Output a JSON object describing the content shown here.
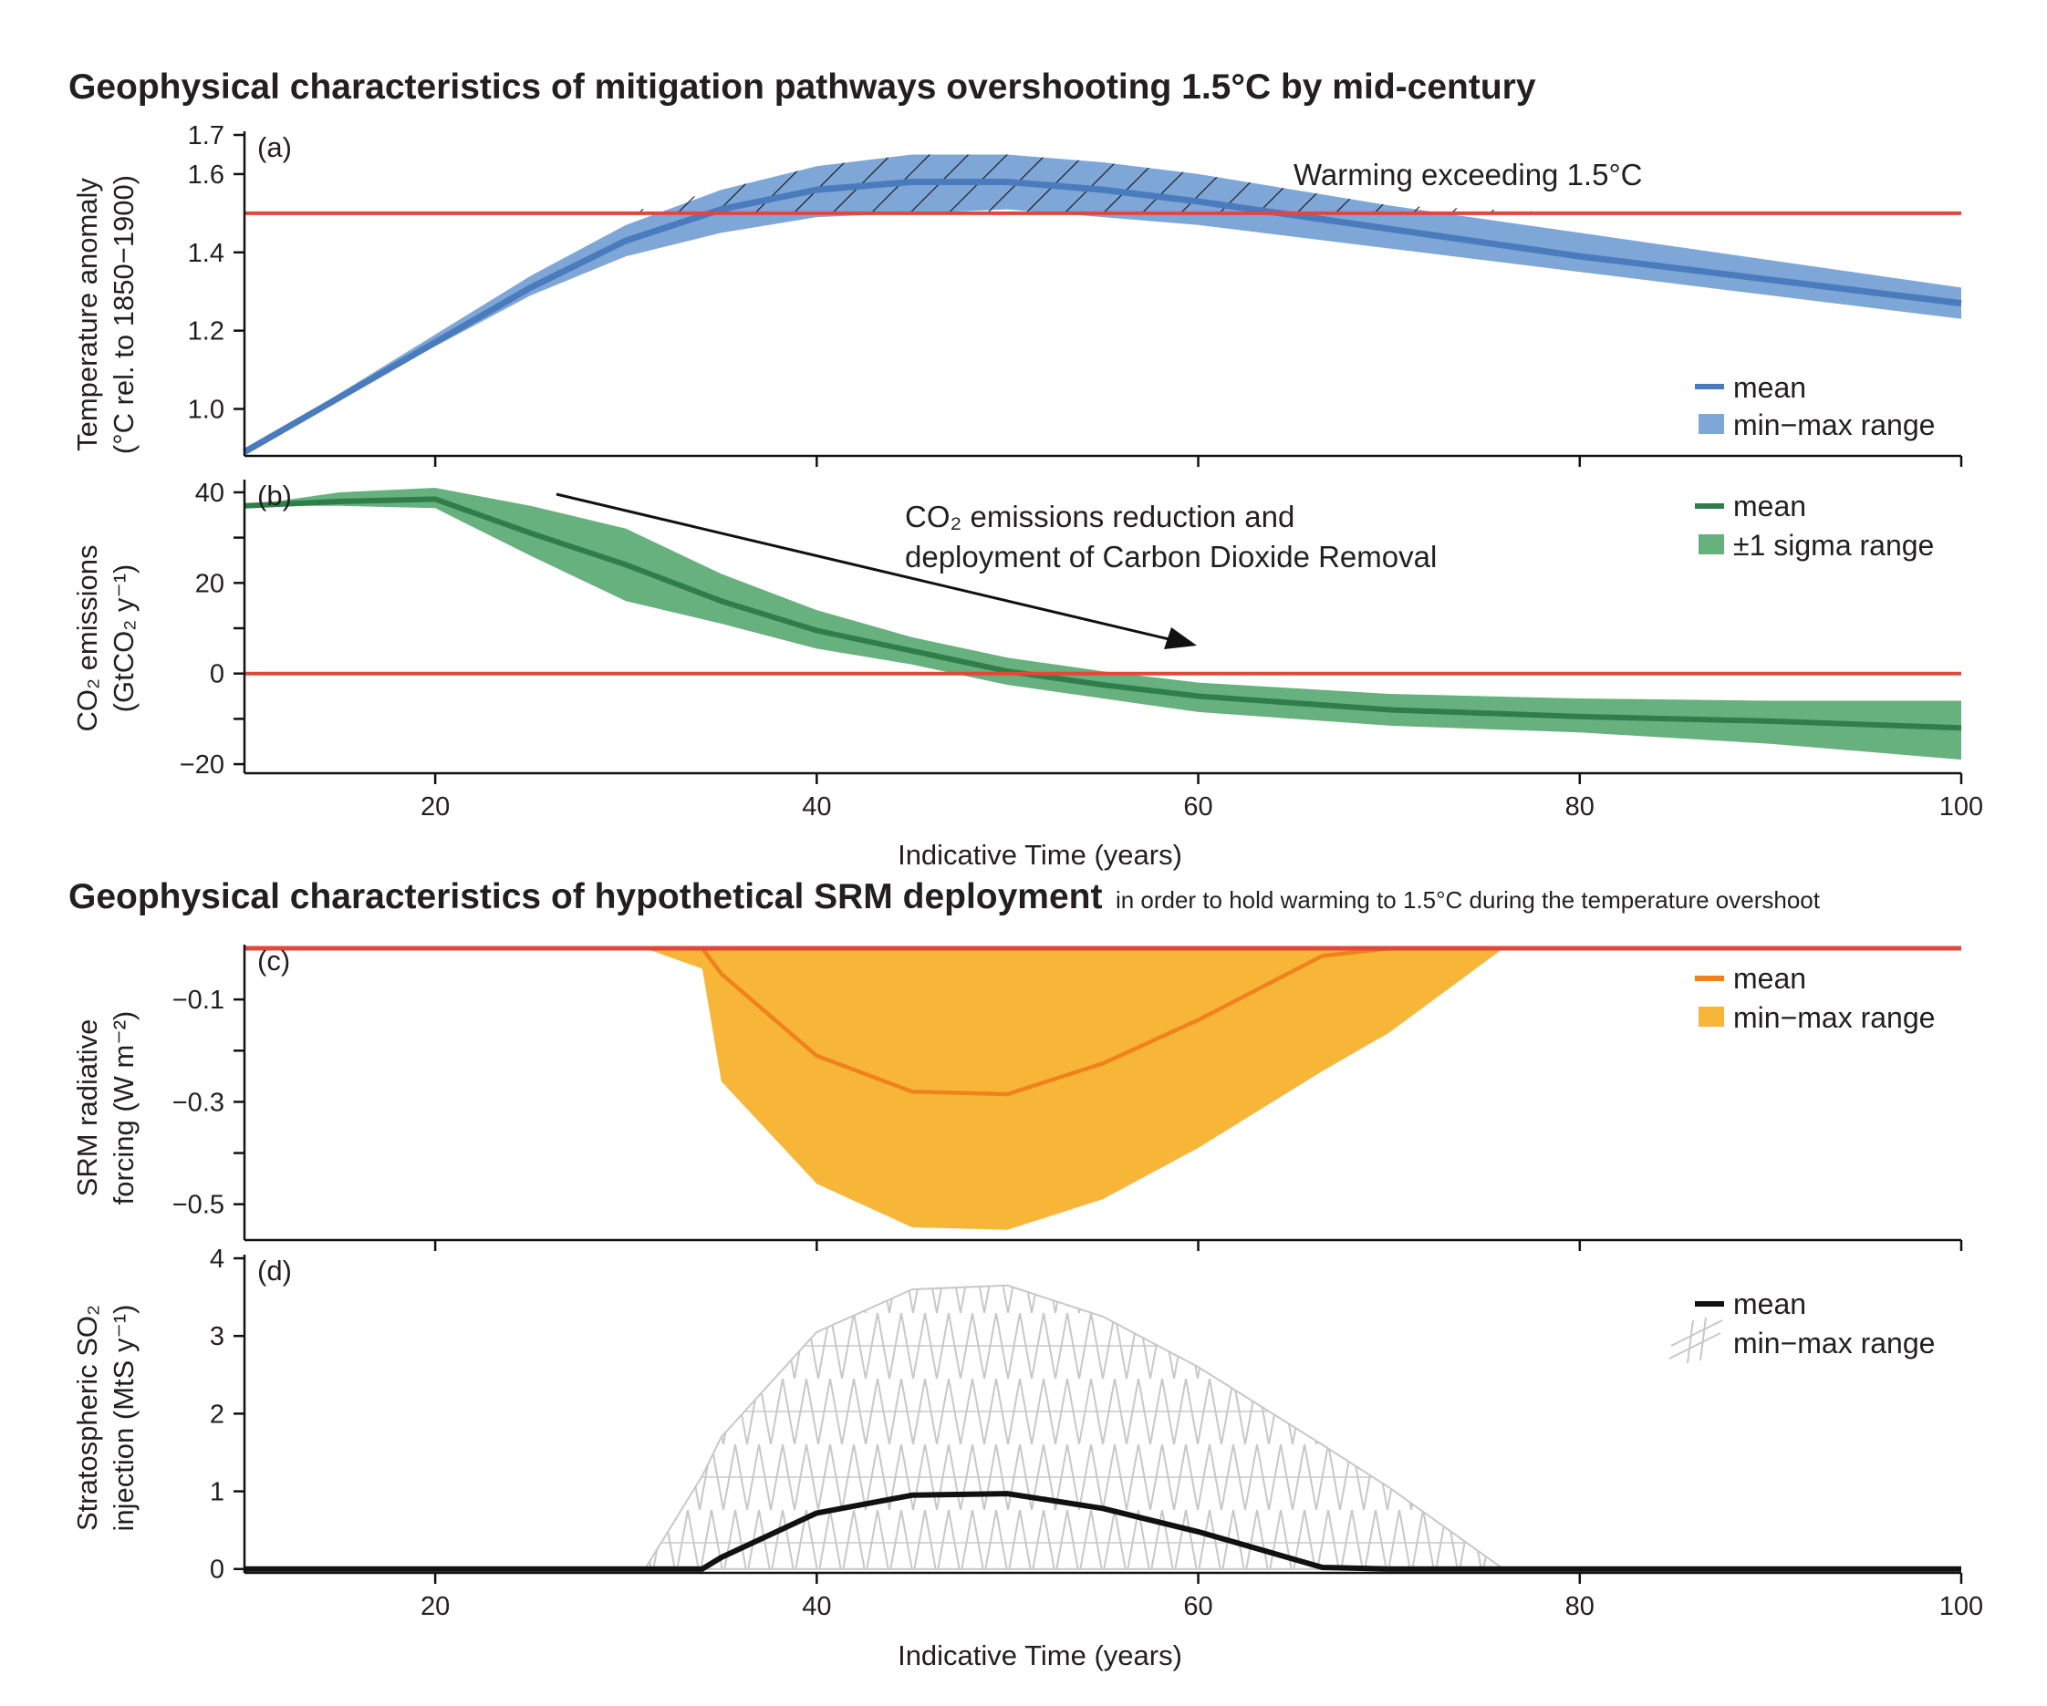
{
  "titles": {
    "top": "Geophysical characteristics of mitigation pathways overshooting 1.5°C by mid-century",
    "bottom_bold": "Geophysical characteristics of hypothetical SRM deployment",
    "bottom_normal": "in order to hold warming to 1.5°C during the temperature overshoot"
  },
  "x_axis": {
    "label": "Indicative Time (years)",
    "range": [
      10,
      100
    ],
    "ticks": [
      20,
      40,
      60,
      80,
      100
    ]
  },
  "colors": {
    "temp_mean": "#4a7bbd",
    "temp_band": "#7ea7d8",
    "co2_mean": "#2e7d4a",
    "co2_band": "#66b17d",
    "srm_mean": "#f0821e",
    "srm_band": "#f8b638",
    "so2_mean": "#111111",
    "so2_hatch": "#c8c8c8",
    "threshold": "#e2473a"
  },
  "chart_data": [
    {
      "id": "a",
      "panel_label": "(a)",
      "type": "area",
      "ylabel_line1": "Temperature anomaly",
      "ylabel_line2": "(°C rel. to 1850−1900)",
      "ylim": [
        0.88,
        1.7
      ],
      "yticks": [
        1.0,
        1.2,
        1.4,
        1.6,
        1.7
      ],
      "ytick_labels": [
        "1.0",
        "1.2",
        "1.4",
        "1.6",
        "1.7"
      ],
      "threshold": 1.5,
      "annotation": "Warming exceeding 1.5°C",
      "legend": {
        "mean": "mean",
        "band": "min−max range"
      },
      "x": [
        10,
        15,
        20,
        25,
        30,
        35,
        40,
        45,
        50,
        55,
        60,
        70,
        80,
        90,
        100
      ],
      "mean": [
        0.89,
        1.03,
        1.17,
        1.31,
        1.43,
        1.51,
        1.56,
        1.58,
        1.58,
        1.56,
        1.53,
        1.46,
        1.39,
        1.33,
        1.27
      ],
      "max": [
        0.89,
        1.04,
        1.19,
        1.34,
        1.47,
        1.56,
        1.62,
        1.65,
        1.65,
        1.63,
        1.6,
        1.52,
        1.45,
        1.38,
        1.31
      ],
      "min": [
        0.89,
        1.03,
        1.16,
        1.29,
        1.39,
        1.45,
        1.49,
        1.5,
        1.51,
        1.49,
        1.47,
        1.41,
        1.35,
        1.29,
        1.23
      ]
    },
    {
      "id": "b",
      "panel_label": "(b)",
      "type": "area",
      "ylabel_line1": "CO₂ emissions",
      "ylabel_line2": "(GtCO₂ y⁻¹)",
      "ylim": [
        -22,
        42
      ],
      "yticks": [
        -20,
        -10,
        0,
        10,
        20,
        30,
        40
      ],
      "ytick_labels": [
        "−20",
        "",
        "0",
        "",
        "20",
        "",
        "40"
      ],
      "threshold": 0,
      "annotation_line1": "CO₂ emissions reduction and",
      "annotation_line2": "deployment of Carbon Dioxide Removal",
      "legend": {
        "mean": "mean",
        "band": "±1 sigma range"
      },
      "x": [
        10,
        15,
        20,
        25,
        30,
        35,
        40,
        45,
        50,
        55,
        60,
        70,
        80,
        90,
        100
      ],
      "mean": [
        37,
        38,
        38.5,
        31,
        24,
        16,
        9.5,
        5,
        0.5,
        -2.5,
        -5,
        -8,
        -9.5,
        -10.5,
        -12
      ],
      "upper": [
        37,
        40,
        41,
        37,
        32,
        22,
        14,
        8,
        3.5,
        0.5,
        -2,
        -4.5,
        -5.5,
        -6,
        -6
      ],
      "lower": [
        37,
        37,
        36.5,
        26,
        16,
        11,
        5.5,
        2,
        -2.5,
        -5.5,
        -8.5,
        -11.5,
        -13,
        -15.5,
        -19
      ]
    },
    {
      "id": "c",
      "panel_label": "(c)",
      "type": "area",
      "ylabel_line1": "SRM radiative",
      "ylabel_line2": "forcing (W m⁻²)",
      "ylim": [
        -0.57,
        0.0
      ],
      "yticks": [
        -0.5,
        -0.4,
        -0.3,
        -0.2,
        -0.1
      ],
      "ytick_labels": [
        "−0.5",
        "",
        "−0.3",
        "",
        "−0.1"
      ],
      "threshold": 0,
      "legend": {
        "mean": "mean",
        "band": "min−max range"
      },
      "x": [
        10,
        31,
        34,
        35,
        40,
        45,
        50,
        55,
        60,
        66.5,
        70,
        76,
        100
      ],
      "mean": [
        0,
        0,
        0,
        -0.05,
        -0.21,
        -0.28,
        -0.285,
        -0.225,
        -0.14,
        -0.015,
        0,
        0,
        0
      ],
      "min": [
        0,
        0,
        -0.04,
        -0.26,
        -0.46,
        -0.545,
        -0.55,
        -0.49,
        -0.39,
        -0.24,
        -0.165,
        0,
        0
      ],
      "max": [
        0,
        0,
        0,
        0,
        0,
        0,
        0,
        0,
        0,
        0,
        0,
        0,
        0
      ]
    },
    {
      "id": "d",
      "panel_label": "(d)",
      "type": "area",
      "ylabel_line1": "Stratospheric SO₂",
      "ylabel_line2": "injection (MtS y⁻¹)",
      "ylim": [
        -0.05,
        4.0
      ],
      "yticks": [
        0,
        1,
        2,
        3,
        4
      ],
      "ytick_labels": [
        "0",
        "1",
        "2",
        "3",
        "4"
      ],
      "legend": {
        "mean": "mean",
        "band": "min−max range"
      },
      "x": [
        10,
        31,
        34,
        35,
        40,
        45,
        50,
        55,
        60,
        66.5,
        70,
        76,
        100
      ],
      "mean": [
        0,
        0,
        0,
        0.15,
        0.72,
        0.95,
        0.97,
        0.78,
        0.48,
        0.02,
        0,
        0,
        0
      ],
      "max": [
        0,
        0,
        1.2,
        1.7,
        3.05,
        3.6,
        3.65,
        3.25,
        2.6,
        1.6,
        1.05,
        0,
        0
      ],
      "min": [
        0,
        0,
        0,
        0,
        0,
        0,
        0,
        0,
        0,
        0,
        0,
        0,
        0
      ]
    }
  ]
}
